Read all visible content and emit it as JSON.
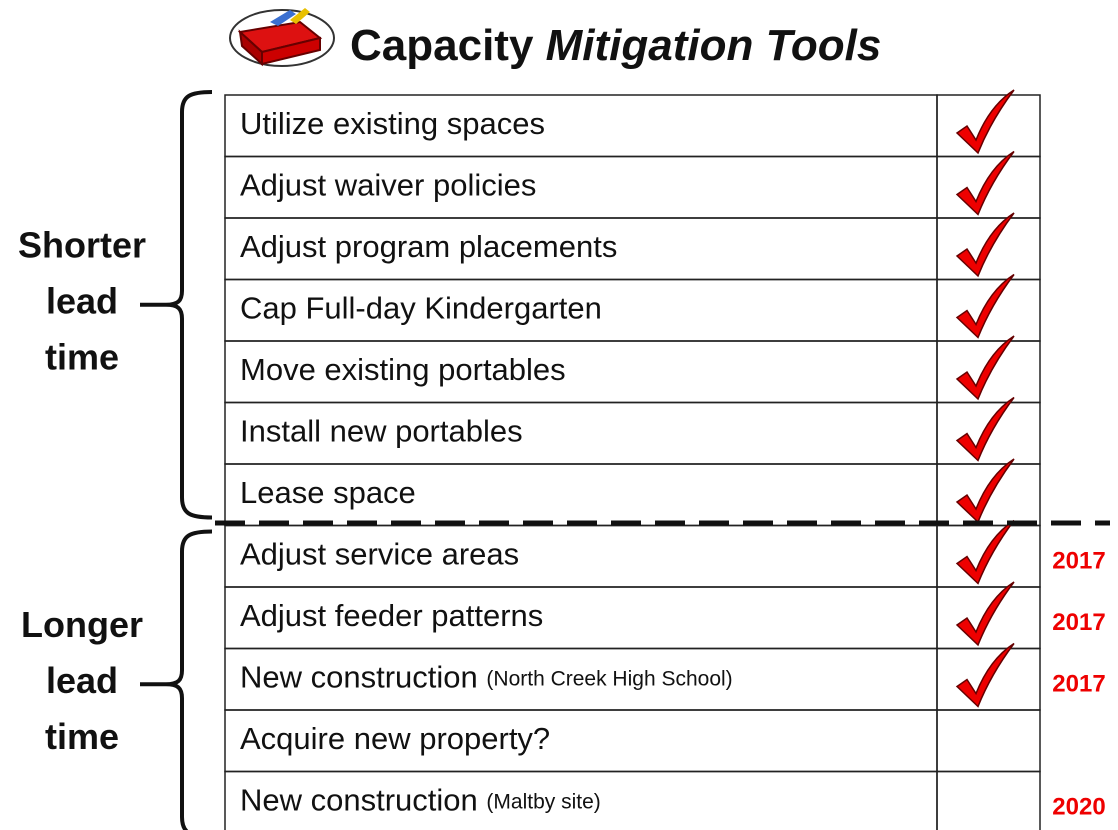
{
  "header": {
    "title": "Capacity",
    "title_emphasis": "Mitigation Tools"
  },
  "groups": [
    {
      "label": [
        "Shorter",
        "lead",
        "time"
      ],
      "rows": [
        {
          "text": "Utilize existing spaces",
          "checked": true
        },
        {
          "text": "Adjust waiver policies",
          "checked": true
        },
        {
          "text": "Adjust program placements",
          "checked": true
        },
        {
          "text": "Cap Full-day Kindergarten",
          "checked": true
        },
        {
          "text": "Move existing portables",
          "checked": true
        },
        {
          "text": "Install new portables",
          "checked": true
        },
        {
          "text": "Lease space",
          "checked": true
        }
      ]
    },
    {
      "label": [
        "Longer",
        "lead",
        "time"
      ],
      "rows": [
        {
          "text": "Adjust service areas",
          "checked": true,
          "year": "2017"
        },
        {
          "text": "Adjust feeder patterns",
          "checked": true,
          "year": "2017"
        },
        {
          "text": "New construction",
          "note": "(North Creek High School)",
          "checked": true,
          "year": "2017"
        },
        {
          "text": "Acquire new property?",
          "checked": false
        },
        {
          "text": "New construction",
          "note": "(Maltby site)",
          "checked": false,
          "year": "2020"
        }
      ]
    }
  ]
}
